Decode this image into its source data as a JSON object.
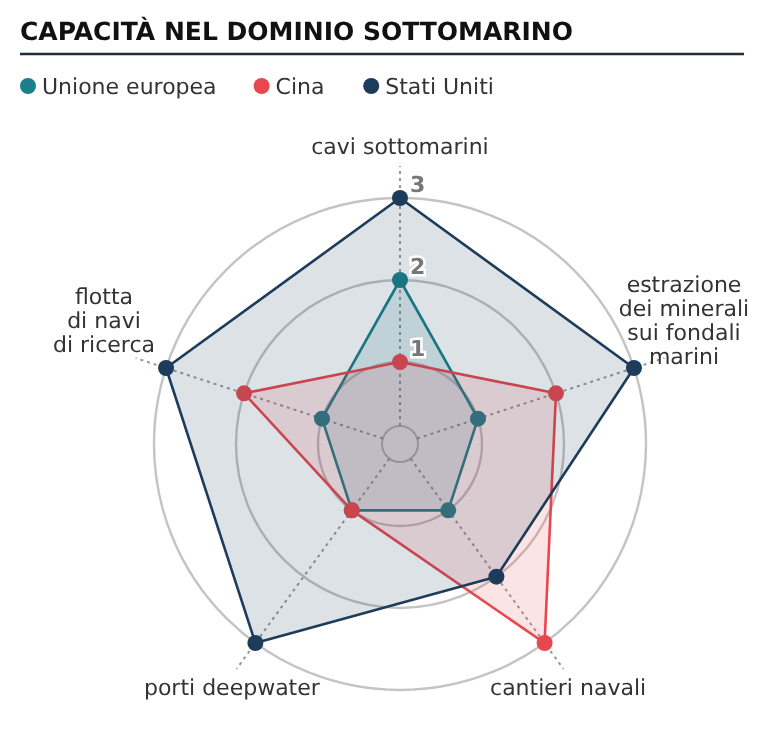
{
  "chart_data": {
    "type": "radar",
    "title": "CAPACITÀ NEL DOMINIO SOTTOMARINO",
    "categories": [
      "cavi sottomarini",
      "estrazione\ndei minerali\nsui fondali\nmarini",
      "cantieri navali",
      "porti deepwater",
      "flotta\ndi navi\ndi ricerca"
    ],
    "ylim": [
      0,
      3
    ],
    "yticks": [
      1,
      2,
      3
    ],
    "legend": "top left",
    "marker": "circle",
    "series": [
      {
        "name": "Unione europea",
        "color": "#1a7f8a",
        "values": [
          2,
          1,
          1,
          1,
          1
        ]
      },
      {
        "name": "Cina",
        "color": "#e8474f",
        "values": [
          1,
          2,
          3,
          1,
          2
        ]
      },
      {
        "name": "Stati Uniti",
        "color": "#1d3b5a",
        "values": [
          3,
          3,
          2,
          3,
          3
        ]
      }
    ]
  }
}
